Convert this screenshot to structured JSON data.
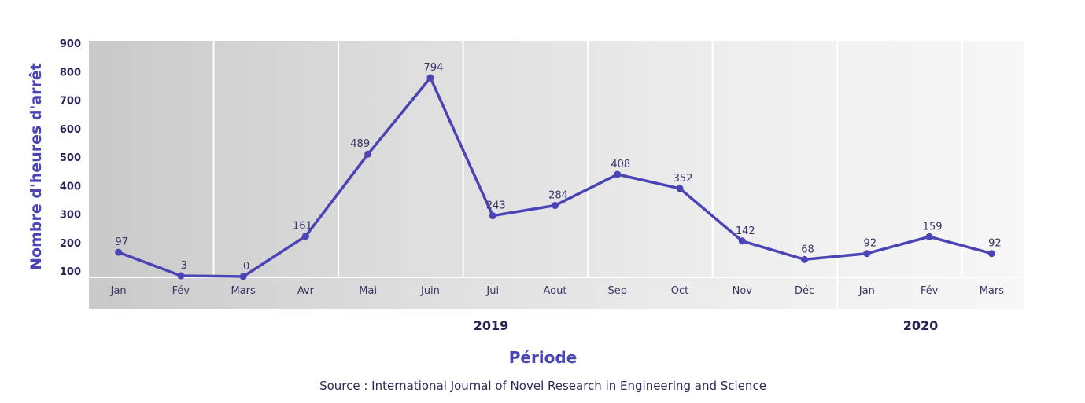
{
  "chart_data": {
    "type": "line",
    "title": "",
    "xlabel": "Période",
    "ylabel": "Nombre d'heures d'arrêt",
    "source": "Source : International Journal of Novel Research in Engineering and Science",
    "y_ticks": [
      "900",
      "800",
      "700",
      "600",
      "500",
      "400",
      "300",
      "200",
      "100"
    ],
    "ylim": [
      100,
      900
    ],
    "categories": [
      "Jan",
      "Fév",
      "Mars",
      "Avr",
      "Mai",
      "Juin",
      "Jui",
      "Aout",
      "Sep",
      "Oct",
      "Nov",
      "Déc",
      "Jan",
      "Fév",
      "Mars"
    ],
    "series": [
      {
        "name": "Nombre d'heures d'arrêt",
        "values": [
          97,
          3,
          0,
          161,
          489,
          794,
          243,
          284,
          408,
          352,
          142,
          68,
          92,
          159,
          92
        ],
        "data_labels": [
          "97",
          "3",
          "0",
          "161",
          "489",
          "794",
          "243",
          "284",
          "408",
          "352",
          "142",
          "68",
          "92",
          "159",
          "92"
        ]
      }
    ],
    "year_groups": [
      {
        "label": "2019",
        "months": 12
      },
      {
        "label": "2020",
        "months": 3
      }
    ],
    "grid": false,
    "legend": "none",
    "colors": {
      "line": "#4b44b5",
      "axis_title": "#4b44b5",
      "text": "#2a2356"
    }
  }
}
